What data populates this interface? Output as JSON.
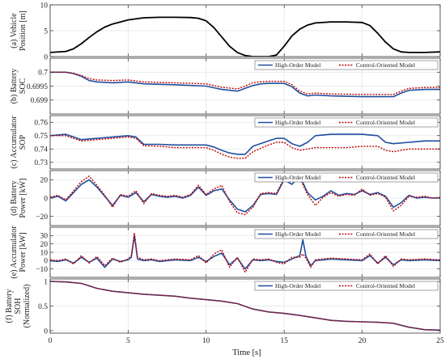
{
  "chart_data": [
    {
      "type": "line",
      "ylabel": [
        "(a) Vehicle",
        "Position [m]"
      ],
      "ylim": [
        0,
        10
      ],
      "yticks": [
        0,
        5,
        10
      ],
      "ytick_labels": [
        "0",
        "5",
        "10"
      ],
      "legend": null,
      "series": [
        {
          "color": "#000000",
          "dashed": false,
          "x": [
            0,
            1,
            1.5,
            2,
            2.5,
            3,
            3.5,
            4,
            5,
            6,
            7,
            8,
            9,
            9.5,
            10,
            10.5,
            11,
            11.5,
            12,
            12.5,
            13,
            14,
            14.5,
            15,
            15.5,
            16,
            16.5,
            17,
            18,
            19,
            20,
            20.5,
            21,
            21.5,
            22,
            22.5,
            23,
            24,
            25
          ],
          "y": [
            0.8,
            1.0,
            1.5,
            2.5,
            3.7,
            4.8,
            5.7,
            6.3,
            7.1,
            7.5,
            7.6,
            7.6,
            7.55,
            7.4,
            6.9,
            5.6,
            3.8,
            2.0,
            0.8,
            0.2,
            0.0,
            0.0,
            0.3,
            2.0,
            4.0,
            5.3,
            6.1,
            6.5,
            6.7,
            6.7,
            6.6,
            6.0,
            4.5,
            2.8,
            1.5,
            0.9,
            0.8,
            0.8,
            0.9
          ]
        }
      ]
    },
    {
      "type": "line",
      "ylabel": [
        "(b) Battery",
        "SOC"
      ],
      "ylim": [
        0.6985,
        0.7005
      ],
      "yticks": [
        0.699,
        0.6995,
        0.7
      ],
      "ytick_labels": [
        "0.699",
        "0.6995",
        "0.7"
      ],
      "legend": [
        "High-Order Model",
        "Control-Oriented Model"
      ],
      "series": [
        {
          "name": "High-Order Model",
          "color": "#1f4e9e",
          "dashed": false,
          "x": [
            0,
            1,
            1.5,
            2,
            2.5,
            3,
            4,
            5,
            6,
            8,
            10,
            11,
            12,
            12.5,
            13,
            13.5,
            14,
            15,
            15.5,
            16,
            16.5,
            17,
            18,
            20,
            22,
            22.5,
            23,
            24,
            25
          ],
          "y": [
            0.7,
            0.7,
            0.69995,
            0.69985,
            0.6997,
            0.69965,
            0.69962,
            0.69965,
            0.69958,
            0.69955,
            0.6995,
            0.69938,
            0.69932,
            0.69942,
            0.69952,
            0.69958,
            0.6996,
            0.6996,
            0.69948,
            0.69925,
            0.69915,
            0.69918,
            0.69915,
            0.69912,
            0.69912,
            0.69925,
            0.69935,
            0.69938,
            0.69938
          ]
        },
        {
          "name": "Control-Oriented Model",
          "color": "#c00000",
          "dashed": true,
          "x": [
            0,
            1,
            1.5,
            2,
            2.5,
            3,
            4,
            5,
            6,
            8,
            10,
            11,
            12,
            12.5,
            13,
            13.5,
            14,
            15,
            15.5,
            16,
            16.5,
            17,
            18,
            20,
            22,
            22.5,
            23,
            24,
            25
          ],
          "y": [
            0.7,
            0.7,
            0.69996,
            0.69988,
            0.69977,
            0.69972,
            0.6997,
            0.69972,
            0.69965,
            0.69962,
            0.69958,
            0.69946,
            0.6994,
            0.6995,
            0.69962,
            0.69966,
            0.69967,
            0.69967,
            0.69955,
            0.69932,
            0.69922,
            0.69925,
            0.69922,
            0.6992,
            0.6992,
            0.69932,
            0.69942,
            0.69945,
            0.69945
          ]
        }
      ]
    },
    {
      "type": "line",
      "ylabel": [
        "(c) Accumulator",
        "SOP"
      ],
      "ylim": [
        0.725,
        0.765
      ],
      "yticks": [
        0.73,
        0.74,
        0.75,
        0.76
      ],
      "ytick_labels": [
        "0.73",
        "0.74",
        "0.75",
        "0.76"
      ],
      "legend": [
        "High-Order Model",
        "Control-Oriented Model"
      ],
      "series": [
        {
          "name": "High-Order Model",
          "color": "#1f4e9e",
          "dashed": false,
          "x": [
            0,
            1,
            1.5,
            2,
            3,
            4,
            5,
            5.5,
            6,
            7,
            8,
            9,
            10,
            10.5,
            11,
            11.5,
            12,
            12.5,
            13,
            14,
            14.5,
            15,
            15.5,
            16,
            16.5,
            17,
            18,
            19,
            20,
            21,
            21.5,
            22,
            23,
            24,
            25
          ],
          "y": [
            0.75,
            0.751,
            0.749,
            0.747,
            0.748,
            0.749,
            0.75,
            0.749,
            0.7435,
            0.7435,
            0.743,
            0.743,
            0.743,
            0.7415,
            0.739,
            0.737,
            0.736,
            0.736,
            0.742,
            0.746,
            0.748,
            0.748,
            0.744,
            0.742,
            0.745,
            0.75,
            0.751,
            0.751,
            0.751,
            0.75,
            0.745,
            0.744,
            0.745,
            0.746,
            0.746
          ]
        },
        {
          "name": "Control-Oriented Model",
          "color": "#c00000",
          "dashed": true,
          "x": [
            0,
            1,
            1.5,
            2,
            3,
            4,
            5,
            5.5,
            6,
            7,
            8,
            9,
            10,
            10.5,
            11,
            11.5,
            12,
            12.5,
            13,
            14,
            14.5,
            15,
            15.5,
            16,
            16.5,
            17,
            18,
            19,
            20,
            21,
            21.5,
            22,
            23,
            24,
            25
          ],
          "y": [
            0.75,
            0.75,
            0.748,
            0.746,
            0.747,
            0.748,
            0.749,
            0.748,
            0.7425,
            0.742,
            0.741,
            0.741,
            0.741,
            0.739,
            0.736,
            0.734,
            0.733,
            0.733,
            0.738,
            0.743,
            0.745,
            0.745,
            0.741,
            0.739,
            0.74,
            0.741,
            0.741,
            0.741,
            0.742,
            0.742,
            0.739,
            0.738,
            0.74,
            0.74,
            0.74
          ]
        }
      ]
    },
    {
      "type": "line",
      "ylabel": [
        "(d) Battery",
        "Power [kW]"
      ],
      "ylim": [
        -30,
        30
      ],
      "yticks": [
        -20,
        0,
        20
      ],
      "ytick_labels": [
        "−20",
        "0",
        "20"
      ],
      "legend": [
        "High-Order Model",
        "Control-Oriented Model"
      ],
      "series": [
        {
          "name": "High-Order Model",
          "color": "#1f4e9e",
          "dashed": false,
          "x": [
            0,
            0.5,
            1,
            1.5,
            2,
            2.5,
            3,
            3.5,
            4,
            4.5,
            5,
            5.5,
            6,
            6.5,
            7,
            7.5,
            8,
            8.5,
            9,
            9.5,
            10,
            10.5,
            11,
            11.5,
            12,
            12.5,
            13,
            13.5,
            14,
            14.5,
            15,
            15.5,
            16,
            16.5,
            17,
            17.5,
            18,
            18.5,
            19,
            19.5,
            20,
            20.5,
            21,
            21.5,
            22,
            22.5,
            23,
            23.5,
            24,
            24.5,
            25
          ],
          "y": [
            0,
            2,
            -3,
            6,
            15,
            20,
            12,
            2,
            -8,
            3,
            1,
            6,
            -4,
            4,
            2,
            1,
            2,
            0,
            3,
            12,
            3,
            8,
            10,
            -2,
            -12,
            -15,
            -8,
            4,
            5,
            4,
            20,
            15,
            24,
            6,
            -2,
            2,
            8,
            3,
            5,
            4,
            8,
            4,
            6,
            2,
            -10,
            -5,
            3,
            0,
            1,
            0,
            0
          ]
        },
        {
          "name": "Control-Oriented Model",
          "color": "#c00000",
          "dashed": true,
          "x": [
            0,
            0.5,
            1,
            1.5,
            2,
            2.5,
            3,
            3.5,
            4,
            4.5,
            5,
            5.5,
            6,
            6.5,
            7,
            7.5,
            8,
            8.5,
            9,
            9.5,
            10,
            10.5,
            11,
            11.5,
            12,
            12.5,
            13,
            13.5,
            14,
            14.5,
            15,
            15.5,
            16,
            16.5,
            17,
            17.5,
            18,
            18.5,
            19,
            19.5,
            20,
            20.5,
            21,
            21.5,
            22,
            22.5,
            23,
            23.5,
            24,
            24.5,
            25
          ],
          "y": [
            1,
            3,
            -2,
            8,
            18,
            24,
            14,
            3,
            -10,
            4,
            2,
            8,
            -6,
            5,
            3,
            2,
            3,
            1,
            4,
            14,
            4,
            10,
            14,
            -4,
            -16,
            -18,
            -10,
            5,
            6,
            5,
            22,
            18,
            22,
            4,
            -8,
            1,
            6,
            2,
            4,
            3,
            10,
            3,
            5,
            1,
            -14,
            -8,
            2,
            1,
            2,
            0,
            1
          ]
        }
      ]
    },
    {
      "type": "line",
      "ylabel": [
        "(e) Accumulator",
        "Power [kW]"
      ],
      "ylim": [
        -20,
        40
      ],
      "yticks": [
        -10,
        0,
        10,
        20,
        30
      ],
      "ytick_labels": [
        "−10",
        "0",
        "10",
        "20",
        "30"
      ],
      "legend": [
        "High-Order Model",
        "Control-Oriented Model"
      ],
      "series": [
        {
          "name": "High-Order Model",
          "color": "#1f4e9e",
          "dashed": false,
          "x": [
            0,
            0.5,
            1,
            1.5,
            2,
            2.5,
            3,
            3.5,
            4,
            4.5,
            5,
            5.2,
            5.4,
            5.6,
            6,
            6.5,
            7,
            8,
            9,
            9.5,
            10,
            10.5,
            11,
            11.5,
            12,
            12.5,
            13,
            13.5,
            14,
            14.5,
            15,
            15.5,
            16,
            16.2,
            16.4,
            16.7,
            17,
            17.5,
            18,
            19,
            20,
            20.5,
            21,
            21.5,
            22,
            22.5,
            23,
            24,
            25
          ],
          "y": [
            0,
            -1,
            1,
            -3,
            4,
            -2,
            3,
            -8,
            2,
            -1,
            1,
            4,
            30,
            2,
            0,
            1,
            -1,
            1,
            0,
            4,
            -1,
            5,
            9,
            -5,
            3,
            -10,
            1,
            0,
            1,
            -1,
            -2,
            2,
            6,
            25,
            5,
            -6,
            0,
            1,
            2,
            1,
            0,
            6,
            -3,
            4,
            -5,
            1,
            0,
            1,
            0
          ]
        },
        {
          "name": "Control-Oriented Model",
          "color": "#c00000",
          "dashed": true,
          "x": [
            0,
            0.5,
            1,
            1.5,
            2,
            2.5,
            3,
            3.5,
            4,
            4.5,
            5,
            5.2,
            5.4,
            5.6,
            6,
            6.5,
            7,
            8,
            9,
            9.5,
            10,
            10.5,
            11,
            11.5,
            12,
            12.5,
            13,
            13.5,
            14,
            14.5,
            15,
            15.5,
            16,
            16.2,
            16.4,
            16.7,
            17,
            17.5,
            18,
            19,
            20,
            20.5,
            21,
            21.5,
            22,
            22.5,
            23,
            24,
            25
          ],
          "y": [
            1,
            0,
            2,
            -4,
            6,
            -3,
            5,
            -6,
            3,
            -2,
            2,
            6,
            33,
            4,
            1,
            2,
            0,
            2,
            1,
            6,
            -3,
            8,
            13,
            -8,
            4,
            -14,
            2,
            1,
            2,
            -2,
            -4,
            4,
            4,
            8,
            3,
            -8,
            1,
            2,
            3,
            2,
            1,
            8,
            -4,
            6,
            -7,
            2,
            1,
            2,
            1
          ]
        }
      ]
    },
    {
      "type": "line",
      "ylabel": [
        "(f) Battery",
        "SOH",
        "(Normalized)"
      ],
      "ylim": [
        -0.05,
        1.05
      ],
      "yticks": [
        0,
        0.5,
        1
      ],
      "ytick_labels": [
        "0",
        "0.5",
        "1"
      ],
      "legend": [
        "High-Order Model",
        "Control-Oriented Model"
      ],
      "series": [
        {
          "name": "High-Order Model",
          "color": "#1f4e9e",
          "dashed": false,
          "x": [
            0,
            1,
            2,
            3,
            4,
            5,
            6,
            7,
            8,
            9,
            10,
            11,
            12,
            13,
            14,
            15,
            16,
            17,
            18,
            19,
            20,
            21,
            22,
            23,
            24,
            25
          ],
          "y": [
            1.0,
            0.99,
            0.96,
            0.86,
            0.8,
            0.77,
            0.74,
            0.72,
            0.7,
            0.66,
            0.63,
            0.6,
            0.55,
            0.44,
            0.38,
            0.35,
            0.31,
            0.26,
            0.21,
            0.19,
            0.18,
            0.17,
            0.15,
            0.07,
            0.02,
            0.01
          ]
        },
        {
          "name": "Control-Oriented Model",
          "color": "#c00000",
          "dashed": true,
          "x": [
            0,
            1,
            2,
            3,
            4,
            5,
            6,
            7,
            8,
            9,
            10,
            11,
            12,
            13,
            14,
            15,
            16,
            17,
            18,
            19,
            20,
            21,
            22,
            23,
            24,
            25
          ],
          "y": [
            1.0,
            0.99,
            0.96,
            0.86,
            0.8,
            0.77,
            0.74,
            0.72,
            0.7,
            0.66,
            0.63,
            0.6,
            0.55,
            0.44,
            0.38,
            0.35,
            0.31,
            0.26,
            0.21,
            0.19,
            0.18,
            0.17,
            0.15,
            0.07,
            0.02,
            0.01
          ]
        }
      ]
    }
  ],
  "x_axis": {
    "label": "Time [s]",
    "xlim": [
      0,
      25
    ],
    "ticks": [
      0,
      5,
      10,
      15,
      20,
      25
    ],
    "tick_labels": [
      "0",
      "5",
      "10",
      "15",
      "20",
      "25"
    ],
    "grid": true
  }
}
